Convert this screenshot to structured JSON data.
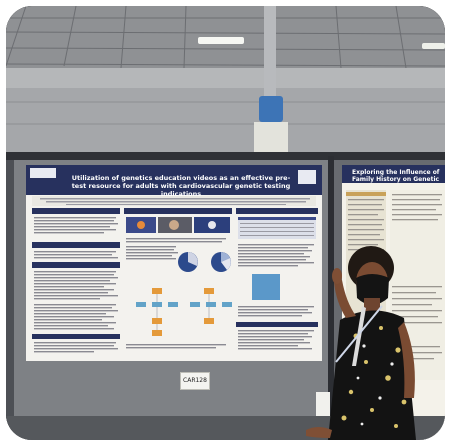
{
  "poster": {
    "title": "Utilization of genetics education videos as an effective pre-test resource for adults with cardiovascular genetic testing indications",
    "sections": [
      "Introduction",
      "Methods",
      "Results",
      "Objective",
      "Materials and Methods",
      "Conclusions"
    ]
  },
  "right_poster": {
    "title": "Exploring the Influence of Family History on Genetic"
  },
  "board_label": "CAR128"
}
